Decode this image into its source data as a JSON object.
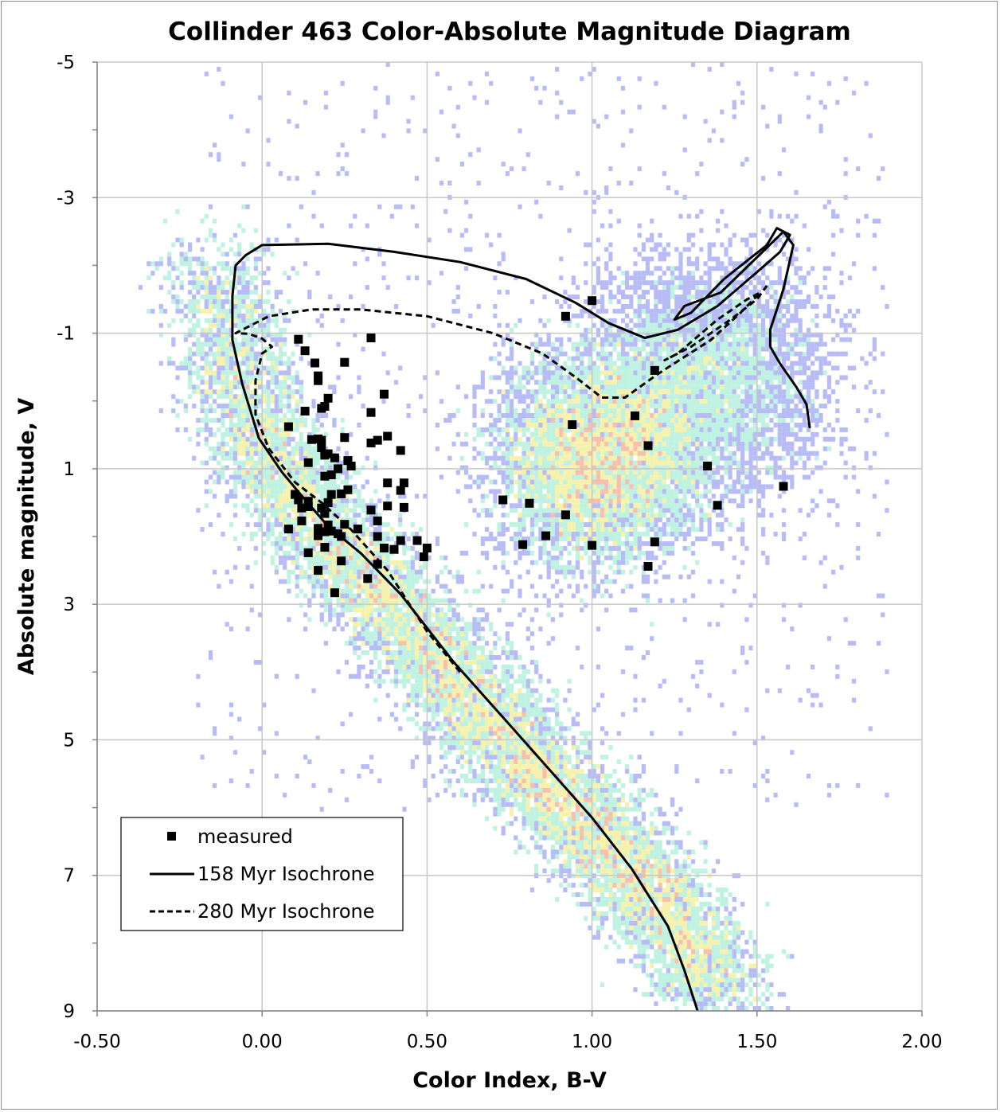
{
  "chart_data": {
    "type": "scatter",
    "title": "Collinder 463 Color-Absolute Magnitude Diagram",
    "xlabel": "Color Index, B-V",
    "ylabel": "Absolute magnitude, V",
    "xlim": [
      -0.5,
      2.0
    ],
    "ylim": [
      -5,
      9
    ],
    "y_inverted": true,
    "grid": true,
    "legend_position": "bottom-left",
    "x_ticks": [
      "-0.50",
      "0.00",
      "0.50",
      "1.00",
      "1.50",
      "2.00"
    ],
    "y_ticks": [
      "-5",
      "-3",
      "-1",
      "1",
      "3",
      "5",
      "7",
      "9"
    ],
    "colors": {
      "points": "#000000",
      "density_low": "#aab0f5",
      "density_mid": "#b4f0dc",
      "density_high": "#f4f0a0",
      "density_peak": "#f4b4a0",
      "grid": "#c8c8c8"
    },
    "series": [
      {
        "name": "measured",
        "kind": "points",
        "points": [
          [
            0.11,
            -0.91
          ],
          [
            0.33,
            -0.93
          ],
          [
            0.13,
            -0.74
          ],
          [
            0.16,
            -0.56
          ],
          [
            0.25,
            -0.57
          ],
          [
            0.17,
            -0.37
          ],
          [
            0.17,
            -0.3
          ],
          [
            0.37,
            -0.1
          ],
          [
            0.2,
            -0.04
          ],
          [
            0.19,
            0.08
          ],
          [
            0.18,
            0.11
          ],
          [
            0.13,
            0.15
          ],
          [
            0.33,
            0.17
          ],
          [
            0.08,
            0.38
          ],
          [
            0.25,
            0.54
          ],
          [
            0.35,
            0.58
          ],
          [
            0.38,
            0.52
          ],
          [
            0.33,
            0.62
          ],
          [
            0.15,
            0.57
          ],
          [
            0.17,
            0.56
          ],
          [
            0.18,
            0.58
          ],
          [
            0.42,
            0.73
          ],
          [
            0.18,
            0.69
          ],
          [
            0.2,
            0.78
          ],
          [
            0.19,
            0.8
          ],
          [
            0.22,
            0.84
          ],
          [
            0.26,
            0.88
          ],
          [
            0.27,
            0.96
          ],
          [
            0.14,
            0.91
          ],
          [
            0.23,
            1.0
          ],
          [
            0.21,
            1.09
          ],
          [
            0.19,
            1.11
          ],
          [
            0.38,
            1.21
          ],
          [
            0.43,
            1.21
          ],
          [
            0.26,
            1.31
          ],
          [
            0.42,
            1.32
          ],
          [
            0.24,
            1.37
          ],
          [
            0.21,
            1.38
          ],
          [
            0.1,
            1.38
          ],
          [
            0.11,
            1.46
          ],
          [
            0.14,
            1.48
          ],
          [
            0.2,
            1.5
          ],
          [
            0.38,
            1.55
          ],
          [
            0.43,
            1.57
          ],
          [
            0.18,
            1.58
          ],
          [
            0.12,
            1.58
          ],
          [
            0.33,
            1.61
          ],
          [
            0.14,
            1.56
          ],
          [
            0.19,
            1.66
          ],
          [
            0.35,
            1.77
          ],
          [
            0.12,
            1.77
          ],
          [
            0.2,
            1.83
          ],
          [
            0.25,
            1.82
          ],
          [
            0.17,
            1.88
          ],
          [
            0.29,
            1.89
          ],
          [
            0.08,
            1.89
          ],
          [
            0.21,
            1.92
          ],
          [
            0.19,
            1.93
          ],
          [
            0.17,
            1.96
          ],
          [
            0.23,
            1.96
          ],
          [
            0.17,
            1.99
          ],
          [
            0.24,
            2.0
          ],
          [
            0.35,
            2.0
          ],
          [
            0.42,
            2.06
          ],
          [
            0.47,
            2.06
          ],
          [
            0.19,
            2.16
          ],
          [
            0.37,
            2.17
          ],
          [
            0.4,
            2.19
          ],
          [
            0.5,
            2.17
          ],
          [
            0.14,
            2.24
          ],
          [
            0.49,
            2.3
          ],
          [
            0.24,
            2.36
          ],
          [
            0.35,
            2.41
          ],
          [
            0.17,
            2.5
          ],
          [
            0.32,
            2.62
          ],
          [
            0.22,
            2.83
          ],
          [
            0.92,
            -1.25
          ],
          [
            1.0,
            -1.48
          ],
          [
            1.19,
            -0.45
          ],
          [
            1.13,
            0.22
          ],
          [
            0.94,
            0.35
          ],
          [
            1.17,
            0.66
          ],
          [
            1.35,
            0.96
          ],
          [
            1.58,
            1.26
          ],
          [
            1.38,
            1.54
          ],
          [
            0.73,
            1.46
          ],
          [
            0.81,
            1.51
          ],
          [
            0.92,
            1.68
          ],
          [
            0.86,
            1.99
          ],
          [
            0.79,
            2.12
          ],
          [
            1.0,
            2.13
          ],
          [
            1.19,
            2.08
          ],
          [
            1.17,
            2.44
          ]
        ]
      },
      {
        "name": "158 Myr Isochrone",
        "kind": "line",
        "dash": "solid",
        "points": [
          [
            1.32,
            9.0
          ],
          [
            1.28,
            8.4
          ],
          [
            1.23,
            7.75
          ],
          [
            1.12,
            6.9
          ],
          [
            1.0,
            6.15
          ],
          [
            0.8,
            5.05
          ],
          [
            0.58,
            3.85
          ],
          [
            0.42,
            2.85
          ],
          [
            0.3,
            2.25
          ],
          [
            0.2,
            1.85
          ],
          [
            0.12,
            1.4
          ],
          [
            0.06,
            1.05
          ],
          [
            -0.01,
            0.55
          ],
          [
            -0.06,
            -0.25
          ],
          [
            -0.09,
            -0.9
          ],
          [
            -0.09,
            -1.55
          ],
          [
            -0.08,
            -2.0
          ],
          [
            -0.05,
            -2.15
          ],
          [
            0.0,
            -2.3
          ],
          [
            0.2,
            -2.32
          ],
          [
            0.4,
            -2.2
          ],
          [
            0.6,
            -2.05
          ],
          [
            0.8,
            -1.8
          ],
          [
            0.95,
            -1.45
          ],
          [
            1.05,
            -1.15
          ],
          [
            1.16,
            -0.93
          ],
          [
            1.26,
            -1.05
          ],
          [
            1.38,
            -1.4
          ],
          [
            1.5,
            -1.9
          ],
          [
            1.57,
            -2.2
          ],
          [
            1.6,
            -2.45
          ],
          [
            1.56,
            -2.55
          ],
          [
            1.53,
            -2.3
          ],
          [
            1.4,
            -1.8
          ],
          [
            1.3,
            -1.3
          ],
          [
            1.25,
            -1.2
          ],
          [
            1.28,
            -1.4
          ],
          [
            1.39,
            -1.6
          ],
          [
            1.58,
            -2.5
          ],
          [
            1.61,
            -2.3
          ],
          [
            1.58,
            -1.65
          ],
          [
            1.54,
            -1.05
          ],
          [
            1.54,
            -0.8
          ],
          [
            1.57,
            -0.55
          ],
          [
            1.62,
            -0.2
          ],
          [
            1.65,
            0.05
          ],
          [
            1.66,
            0.4
          ]
        ]
      },
      {
        "name": "280 Myr Isochrone",
        "kind": "line",
        "dash": "dashed",
        "points": [
          [
            0.6,
            4.0
          ],
          [
            0.5,
            3.4
          ],
          [
            0.38,
            2.5
          ],
          [
            0.27,
            1.9
          ],
          [
            0.18,
            1.5
          ],
          [
            0.1,
            1.2
          ],
          [
            0.02,
            0.7
          ],
          [
            -0.02,
            0.2
          ],
          [
            -0.02,
            -0.3
          ],
          [
            0.0,
            -0.7
          ],
          [
            0.03,
            -0.8
          ],
          [
            0.0,
            -0.92
          ],
          [
            -0.04,
            -0.99
          ],
          [
            -0.08,
            -1.0
          ],
          [
            -0.04,
            -1.1
          ],
          [
            0.02,
            -1.25
          ],
          [
            0.15,
            -1.35
          ],
          [
            0.3,
            -1.35
          ],
          [
            0.5,
            -1.25
          ],
          [
            0.7,
            -1.0
          ],
          [
            0.85,
            -0.7
          ],
          [
            0.95,
            -0.35
          ],
          [
            1.03,
            -0.05
          ],
          [
            1.1,
            -0.05
          ],
          [
            1.2,
            -0.4
          ],
          [
            1.36,
            -0.9
          ],
          [
            1.45,
            -1.3
          ],
          [
            1.51,
            -1.6
          ],
          [
            1.47,
            -1.5
          ],
          [
            1.38,
            -1.2
          ],
          [
            1.26,
            -0.7
          ],
          [
            1.22,
            -0.6
          ],
          [
            1.3,
            -0.8
          ],
          [
            1.42,
            -1.2
          ],
          [
            1.5,
            -1.5
          ],
          [
            1.53,
            -1.7
          ]
        ]
      }
    ],
    "legend": [
      {
        "label": "measured",
        "marker": "square"
      },
      {
        "label": "158 Myr Isochrone",
        "marker": "solid-line"
      },
      {
        "label": "280 Myr Isochrone",
        "marker": "dashed-line"
      }
    ]
  }
}
